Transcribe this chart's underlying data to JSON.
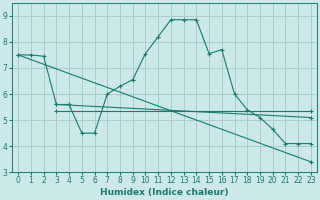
{
  "xlabel": "Humidex (Indice chaleur)",
  "bg_color": "#cce8e8",
  "grid_color": "#aacccc",
  "line_color": "#1a7a6e",
  "xlim": [
    -0.5,
    23.5
  ],
  "ylim": [
    3,
    9.5
  ],
  "xticks": [
    0,
    1,
    2,
    3,
    4,
    5,
    6,
    7,
    8,
    9,
    10,
    11,
    12,
    13,
    14,
    15,
    16,
    17,
    18,
    19,
    20,
    21,
    22,
    23
  ],
  "yticks": [
    3,
    4,
    5,
    6,
    7,
    8,
    9
  ],
  "lines": [
    {
      "x": [
        0,
        1,
        2,
        3,
        4,
        5,
        6,
        7,
        8,
        9,
        10,
        11,
        12,
        13,
        14,
        15,
        16,
        17,
        18,
        19,
        20,
        21,
        22,
        23
      ],
      "y": [
        7.5,
        7.5,
        7.45,
        5.6,
        5.6,
        4.5,
        4.5,
        6.0,
        6.3,
        6.55,
        7.55,
        8.2,
        8.85,
        8.85,
        8.85,
        7.55,
        7.7,
        6.0,
        5.4,
        5.1,
        4.65,
        4.1,
        4.1,
        4.1
      ]
    },
    {
      "x": [
        0,
        23
      ],
      "y": [
        7.5,
        3.4
      ]
    },
    {
      "x": [
        3,
        23
      ],
      "y": [
        5.6,
        5.1
      ]
    },
    {
      "x": [
        3,
        23
      ],
      "y": [
        5.35,
        5.35
      ]
    }
  ]
}
